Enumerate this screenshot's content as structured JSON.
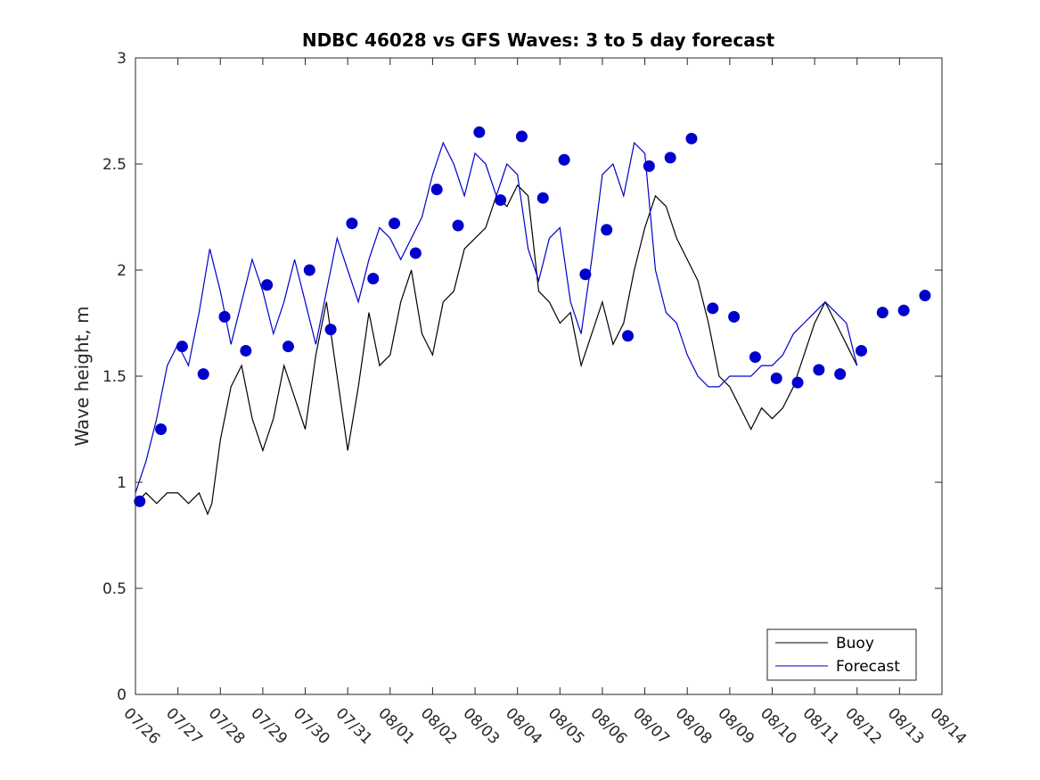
{
  "chart_data": {
    "type": "line",
    "title": "NDBC 46028 vs GFS Waves: 3 to 5 day forecast",
    "xlabel": "",
    "ylabel": "Wave height, m",
    "xlim": [
      "07/26",
      "08/14"
    ],
    "ylim": [
      0,
      3
    ],
    "x_tick_labels": [
      "07/26",
      "07/27",
      "07/28",
      "07/29",
      "07/30",
      "07/31",
      "08/01",
      "08/02",
      "08/03",
      "08/04",
      "08/05",
      "08/06",
      "08/07",
      "08/08",
      "08/09",
      "08/10",
      "08/11",
      "08/12",
      "08/13",
      "08/14"
    ],
    "y_ticks": [
      0,
      0.5,
      1,
      1.5,
      2,
      2.5,
      3
    ],
    "y_tick_labels": [
      "0",
      "0.5",
      "1",
      "1.5",
      "2",
      "2.5",
      "3"
    ],
    "grid": false,
    "legend": {
      "placement": "bottom-right",
      "entries": [
        {
          "label": "Buoy",
          "color": "#000000"
        },
        {
          "label": "Forecast",
          "color": "#0000cc"
        }
      ]
    },
    "series": [
      {
        "name": "Buoy",
        "color": "#000000",
        "points": [
          [
            0,
            0.9
          ],
          [
            0.25,
            0.95
          ],
          [
            0.5,
            0.9
          ],
          [
            0.75,
            0.95
          ],
          [
            1,
            0.95
          ],
          [
            1.25,
            0.9
          ],
          [
            1.5,
            0.95
          ],
          [
            1.7,
            0.85
          ],
          [
            1.8,
            0.9
          ],
          [
            2,
            1.2
          ],
          [
            2.25,
            1.45
          ],
          [
            2.5,
            1.55
          ],
          [
            2.75,
            1.3
          ],
          [
            3,
            1.15
          ],
          [
            3.25,
            1.3
          ],
          [
            3.5,
            1.55
          ],
          [
            3.75,
            1.4
          ],
          [
            4,
            1.25
          ],
          [
            4.25,
            1.6
          ],
          [
            4.5,
            1.85
          ],
          [
            4.75,
            1.5
          ],
          [
            5,
            1.15
          ],
          [
            5.25,
            1.45
          ],
          [
            5.5,
            1.8
          ],
          [
            5.75,
            1.55
          ],
          [
            6,
            1.6
          ],
          [
            6.25,
            1.85
          ],
          [
            6.5,
            2.0
          ],
          [
            6.75,
            1.7
          ],
          [
            7,
            1.6
          ],
          [
            7.25,
            1.85
          ],
          [
            7.5,
            1.9
          ],
          [
            7.75,
            2.1
          ],
          [
            8,
            2.15
          ],
          [
            8.25,
            2.2
          ],
          [
            8.5,
            2.35
          ],
          [
            8.75,
            2.3
          ],
          [
            9,
            2.4
          ],
          [
            9.25,
            2.35
          ],
          [
            9.5,
            1.9
          ],
          [
            9.75,
            1.85
          ],
          [
            10,
            1.75
          ],
          [
            10.25,
            1.8
          ],
          [
            10.5,
            1.55
          ],
          [
            10.75,
            1.7
          ],
          [
            11,
            1.85
          ],
          [
            11.25,
            1.65
          ],
          [
            11.5,
            1.75
          ],
          [
            11.75,
            2.0
          ],
          [
            12,
            2.2
          ],
          [
            12.25,
            2.35
          ],
          [
            12.5,
            2.3
          ],
          [
            12.75,
            2.15
          ],
          [
            13,
            2.05
          ],
          [
            13.25,
            1.95
          ],
          [
            13.5,
            1.75
          ],
          [
            13.75,
            1.5
          ],
          [
            14,
            1.45
          ],
          [
            14.25,
            1.35
          ],
          [
            14.5,
            1.25
          ],
          [
            14.75,
            1.35
          ],
          [
            15,
            1.3
          ],
          [
            15.25,
            1.35
          ],
          [
            15.5,
            1.45
          ],
          [
            15.75,
            1.6
          ],
          [
            16,
            1.75
          ],
          [
            16.25,
            1.85
          ],
          [
            16.5,
            1.75
          ],
          [
            16.75,
            1.65
          ],
          [
            17,
            1.55
          ]
        ]
      },
      {
        "name": "Forecast",
        "color": "#0000cc",
        "points": [
          [
            0,
            0.95
          ],
          [
            0.25,
            1.1
          ],
          [
            0.5,
            1.3
          ],
          [
            0.75,
            1.55
          ],
          [
            1,
            1.65
          ],
          [
            1.25,
            1.55
          ],
          [
            1.5,
            1.8
          ],
          [
            1.75,
            2.1
          ],
          [
            2,
            1.9
          ],
          [
            2.25,
            1.65
          ],
          [
            2.5,
            1.85
          ],
          [
            2.75,
            2.05
          ],
          [
            3,
            1.9
          ],
          [
            3.25,
            1.7
          ],
          [
            3.5,
            1.85
          ],
          [
            3.75,
            2.05
          ],
          [
            4,
            1.85
          ],
          [
            4.25,
            1.65
          ],
          [
            4.5,
            1.9
          ],
          [
            4.75,
            2.15
          ],
          [
            5,
            2.0
          ],
          [
            5.25,
            1.85
          ],
          [
            5.5,
            2.05
          ],
          [
            5.75,
            2.2
          ],
          [
            6,
            2.15
          ],
          [
            6.25,
            2.05
          ],
          [
            6.5,
            2.15
          ],
          [
            6.75,
            2.25
          ],
          [
            7,
            2.45
          ],
          [
            7.25,
            2.6
          ],
          [
            7.5,
            2.5
          ],
          [
            7.75,
            2.35
          ],
          [
            8,
            2.55
          ],
          [
            8.25,
            2.5
          ],
          [
            8.5,
            2.35
          ],
          [
            8.75,
            2.5
          ],
          [
            9,
            2.45
          ],
          [
            9.25,
            2.1
          ],
          [
            9.5,
            1.95
          ],
          [
            9.75,
            2.15
          ],
          [
            10,
            2.2
          ],
          [
            10.25,
            1.85
          ],
          [
            10.5,
            1.7
          ],
          [
            10.75,
            2.05
          ],
          [
            11,
            2.45
          ],
          [
            11.25,
            2.5
          ],
          [
            11.5,
            2.35
          ],
          [
            11.75,
            2.6
          ],
          [
            12,
            2.55
          ],
          [
            12.25,
            2.0
          ],
          [
            12.5,
            1.8
          ],
          [
            12.75,
            1.75
          ],
          [
            13,
            1.6
          ],
          [
            13.25,
            1.5
          ],
          [
            13.5,
            1.45
          ],
          [
            13.75,
            1.45
          ],
          [
            14,
            1.5
          ],
          [
            14.25,
            1.5
          ],
          [
            14.5,
            1.5
          ],
          [
            14.75,
            1.55
          ],
          [
            15,
            1.55
          ],
          [
            15.25,
            1.6
          ],
          [
            15.5,
            1.7
          ],
          [
            15.75,
            1.75
          ],
          [
            16,
            1.8
          ],
          [
            16.25,
            1.85
          ],
          [
            16.5,
            1.8
          ],
          [
            16.75,
            1.75
          ],
          [
            17,
            1.55
          ]
        ]
      },
      {
        "name": "",
        "color": "#0000cc",
        "marker": "circle",
        "points": [
          [
            0.1,
            0.91
          ],
          [
            0.6,
            1.25
          ],
          [
            1.1,
            1.64
          ],
          [
            1.6,
            1.51
          ],
          [
            2.1,
            1.78
          ],
          [
            2.6,
            1.62
          ],
          [
            3.1,
            1.93
          ],
          [
            3.6,
            1.64
          ],
          [
            4.1,
            2.0
          ],
          [
            4.6,
            1.72
          ],
          [
            5.1,
            2.22
          ],
          [
            5.6,
            1.96
          ],
          [
            6.1,
            2.22
          ],
          [
            6.6,
            2.08
          ],
          [
            7.1,
            2.38
          ],
          [
            7.6,
            2.21
          ],
          [
            8.1,
            2.65
          ],
          [
            8.6,
            2.33
          ],
          [
            9.1,
            2.63
          ],
          [
            9.6,
            2.34
          ],
          [
            10.1,
            2.52
          ],
          [
            10.6,
            1.98
          ],
          [
            11.1,
            2.19
          ],
          [
            11.6,
            1.69
          ],
          [
            12.1,
            2.49
          ],
          [
            12.6,
            2.53
          ],
          [
            13.1,
            2.62
          ],
          [
            13.6,
            1.82
          ],
          [
            14.1,
            1.78
          ],
          [
            14.6,
            1.59
          ],
          [
            15.1,
            1.49
          ],
          [
            15.6,
            1.47
          ],
          [
            16.1,
            1.53
          ],
          [
            16.6,
            1.51
          ],
          [
            17.1,
            1.62
          ],
          [
            17.6,
            1.8
          ],
          [
            18.1,
            1.81
          ],
          [
            18.6,
            1.88
          ]
        ]
      }
    ]
  }
}
